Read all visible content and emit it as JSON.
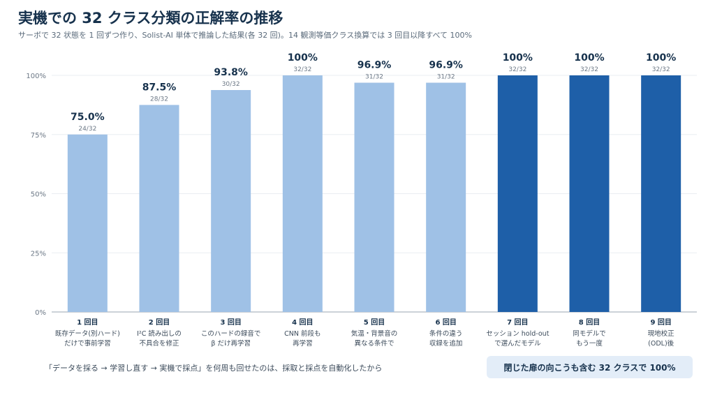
{
  "header": {
    "title": "実機での 32 クラス分類の正解率の推移",
    "subtitle": "サーボで 32 状態を 1 回ずつ作り、Solist-AI 単体で推論した結果(各 32 回)。14 観測等価クラス換算では 3 回目以降すべて 100%"
  },
  "footer": {
    "note": "「データを採る → 学習し直す → 実機で採点」を何周も回せたのは、採取と採点を自動化したから",
    "badge": "閉じた扉の向こうも含む 32 クラスで 100%"
  },
  "colors": {
    "light_bar": "#9fc1e6",
    "dark_bar": "#1e5fa8",
    "grid": "#e9edf1",
    "axis": "#9aa5b1"
  },
  "chart_data": {
    "type": "bar",
    "ylim": [
      0,
      100
    ],
    "yticks": [
      "0%",
      "25%",
      "50%",
      "75%",
      "100%"
    ],
    "ytick_values": [
      0,
      25,
      50,
      75,
      100
    ],
    "grid": true,
    "bars": [
      {
        "round": "1 回目",
        "desc": [
          "既存データ(別ハード)",
          "だけで事前学習"
        ],
        "value": 75.0,
        "label": "75.0%",
        "count": "24/32",
        "highlight": false
      },
      {
        "round": "2 回目",
        "desc": [
          "I²C 読み出しの",
          "不具合を修正"
        ],
        "value": 87.5,
        "label": "87.5%",
        "count": "28/32",
        "highlight": false
      },
      {
        "round": "3 回目",
        "desc": [
          "このハードの録音で",
          "β だけ再学習"
        ],
        "value": 93.8,
        "label": "93.8%",
        "count": "30/32",
        "highlight": false
      },
      {
        "round": "4 回目",
        "desc": [
          "CNN 前段も",
          "再学習"
        ],
        "value": 100,
        "label": "100%",
        "count": "32/32",
        "highlight": false
      },
      {
        "round": "5 回目",
        "desc": [
          "気温・背景音の",
          "異なる条件で"
        ],
        "value": 96.9,
        "label": "96.9%",
        "count": "31/32",
        "highlight": false
      },
      {
        "round": "6 回目",
        "desc": [
          "条件の違う",
          "収録を追加"
        ],
        "value": 96.9,
        "label": "96.9%",
        "count": "31/32",
        "highlight": false
      },
      {
        "round": "7 回目",
        "desc": [
          "セッション hold-out",
          "で選んだモデル"
        ],
        "value": 100,
        "label": "100%",
        "count": "32/32",
        "highlight": true
      },
      {
        "round": "8 回目",
        "desc": [
          "同モデルで",
          "もう一度"
        ],
        "value": 100,
        "label": "100%",
        "count": "32/32",
        "highlight": true
      },
      {
        "round": "9 回目",
        "desc": [
          "現地校正",
          "(ODL)後"
        ],
        "value": 100,
        "label": "100%",
        "count": "32/32",
        "highlight": true
      }
    ]
  }
}
